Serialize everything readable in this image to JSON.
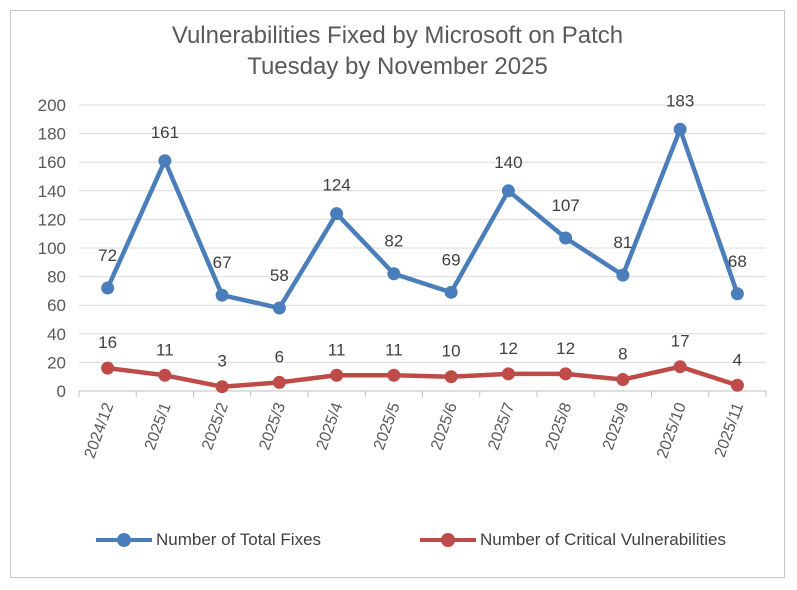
{
  "chart_data": {
    "type": "line",
    "title_lines": [
      "Vulnerabilities Fixed by Microsoft on Patch",
      "Tuesday by November 2025"
    ],
    "categories": [
      "2024/12",
      "2025/1",
      "2025/2",
      "2025/3",
      "2025/4",
      "2025/5",
      "2025/6",
      "2025/7",
      "2025/8",
      "2025/9",
      "2025/10",
      "2025/11"
    ],
    "series": [
      {
        "name": "Number of Total Fixes",
        "color": "#4a7ebb",
        "values": [
          72,
          161,
          67,
          58,
          124,
          82,
          69,
          140,
          107,
          81,
          183,
          68
        ]
      },
      {
        "name": "Number of Critical Vulnerabilities",
        "color": "#be4b48",
        "values": [
          16,
          11,
          3,
          6,
          11,
          11,
          10,
          12,
          12,
          8,
          17,
          4
        ]
      }
    ],
    "ylim": [
      0,
      200
    ],
    "yticks": [
      0,
      20,
      40,
      60,
      80,
      100,
      120,
      140,
      160,
      180,
      200
    ],
    "grid": true,
    "legend_position": "bottom",
    "data_labels": true
  }
}
